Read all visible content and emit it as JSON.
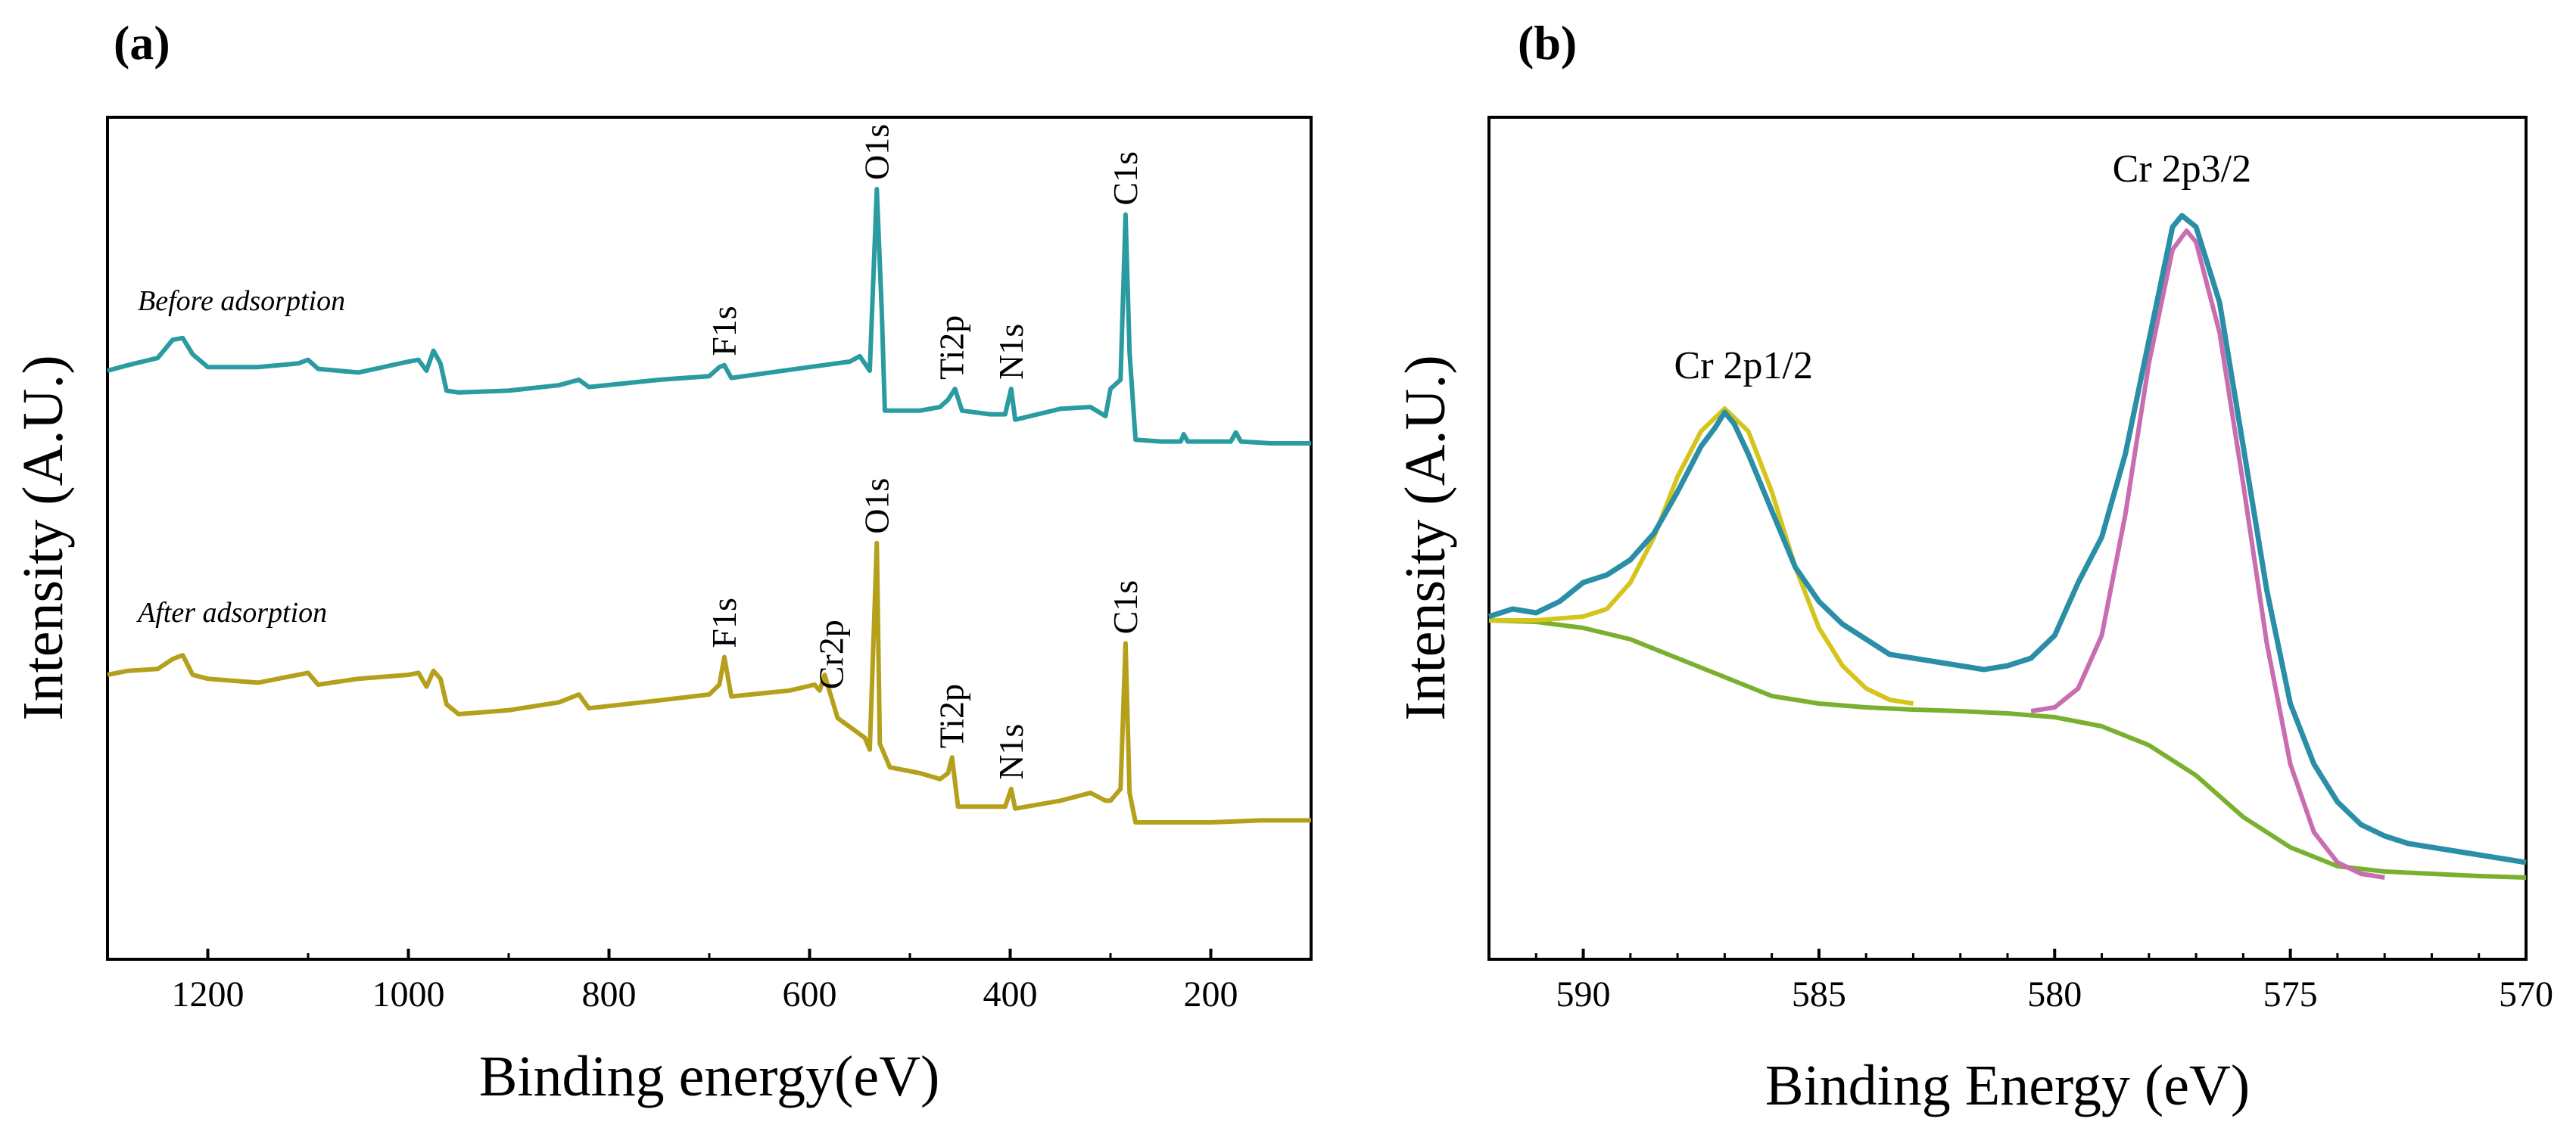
{
  "chart_data": [
    {
      "panel": "(a)",
      "type": "line",
      "xlabel": "Binding energy(eV)",
      "ylabel": "Intensity (A.U.)",
      "xlim": [
        1300,
        100
      ],
      "x_reversed": true,
      "xticks": [
        1200,
        1000,
        800,
        600,
        400,
        200
      ],
      "yticks_shown": false,
      "series": [
        {
          "name": "Before adsorption",
          "color": "#2a9ba0",
          "points": [
            [
              1300,
              0.0
            ],
            [
              1280,
              0.03
            ],
            [
              1250,
              0.07
            ],
            [
              1235,
              0.17
            ],
            [
              1225,
              0.18
            ],
            [
              1215,
              0.09
            ],
            [
              1200,
              0.02
            ],
            [
              1150,
              0.02
            ],
            [
              1110,
              0.04
            ],
            [
              1100,
              0.06
            ],
            [
              1090,
              0.01
            ],
            [
              1050,
              -0.01
            ],
            [
              1000,
              0.05
            ],
            [
              990,
              0.06
            ],
            [
              982,
              0.0
            ],
            [
              975,
              0.11
            ],
            [
              968,
              0.04
            ],
            [
              962,
              -0.11
            ],
            [
              950,
              -0.12
            ],
            [
              900,
              -0.11
            ],
            [
              850,
              -0.08
            ],
            [
              830,
              -0.05
            ],
            [
              820,
              -0.09
            ],
            [
              750,
              -0.05
            ],
            [
              700,
              -0.03
            ],
            [
              690,
              0.02
            ],
            [
              685,
              0.03
            ],
            [
              678,
              -0.04
            ],
            [
              600,
              0.02
            ],
            [
              560,
              0.05
            ],
            [
              550,
              0.08
            ],
            [
              540,
              0.0
            ],
            [
              533,
              1.0
            ],
            [
              528,
              0.32
            ],
            [
              525,
              -0.22
            ],
            [
              490,
              -0.22
            ],
            [
              470,
              -0.2
            ],
            [
              462,
              -0.16
            ],
            [
              455,
              -0.1
            ],
            [
              448,
              -0.22
            ],
            [
              420,
              -0.24
            ],
            [
              405,
              -0.24
            ],
            [
              399,
              -0.1
            ],
            [
              395,
              -0.27
            ],
            [
              350,
              -0.21
            ],
            [
              320,
              -0.2
            ],
            [
              305,
              -0.25
            ],
            [
              300,
              -0.1
            ],
            [
              290,
              -0.05
            ],
            [
              285,
              0.86
            ],
            [
              281,
              0.1
            ],
            [
              275,
              -0.38
            ],
            [
              250,
              -0.39
            ],
            [
              230,
              -0.39
            ],
            [
              227,
              -0.35
            ],
            [
              223,
              -0.39
            ],
            [
              180,
              -0.39
            ],
            [
              175,
              -0.34
            ],
            [
              170,
              -0.39
            ],
            [
              140,
              -0.4
            ],
            [
              100,
              -0.4
            ]
          ],
          "peak_labels": [
            {
              "text": "O1s",
              "x": 533
            },
            {
              "text": "C1s",
              "x": 285
            },
            {
              "text": "F1s",
              "x": 685
            },
            {
              "text": "Ti2p",
              "x": 458
            },
            {
              "text": "N1s",
              "x": 399
            }
          ]
        },
        {
          "name": "After adsorption",
          "color": "#b5a01c",
          "points": [
            [
              1300,
              0.0
            ],
            [
              1280,
              0.02
            ],
            [
              1250,
              0.03
            ],
            [
              1235,
              0.08
            ],
            [
              1225,
              0.1
            ],
            [
              1215,
              0.0
            ],
            [
              1200,
              -0.02
            ],
            [
              1150,
              -0.04
            ],
            [
              1100,
              0.01
            ],
            [
              1090,
              -0.05
            ],
            [
              1050,
              -0.02
            ],
            [
              1000,
              0.0
            ],
            [
              990,
              0.01
            ],
            [
              982,
              -0.06
            ],
            [
              975,
              0.02
            ],
            [
              968,
              -0.02
            ],
            [
              962,
              -0.15
            ],
            [
              950,
              -0.2
            ],
            [
              900,
              -0.18
            ],
            [
              850,
              -0.14
            ],
            [
              830,
              -0.1
            ],
            [
              820,
              -0.17
            ],
            [
              750,
              -0.13
            ],
            [
              700,
              -0.1
            ],
            [
              690,
              -0.05
            ],
            [
              685,
              0.09
            ],
            [
              678,
              -0.11
            ],
            [
              620,
              -0.08
            ],
            [
              595,
              -0.05
            ],
            [
              590,
              -0.08
            ],
            [
              585,
              0.0
            ],
            [
              578,
              -0.12
            ],
            [
              572,
              -0.22
            ],
            [
              545,
              -0.32
            ],
            [
              540,
              -0.38
            ],
            [
              533,
              0.67
            ],
            [
              530,
              -0.35
            ],
            [
              520,
              -0.47
            ],
            [
              490,
              -0.5
            ],
            [
              470,
              -0.53
            ],
            [
              462,
              -0.5
            ],
            [
              458,
              -0.42
            ],
            [
              452,
              -0.67
            ],
            [
              420,
              -0.67
            ],
            [
              405,
              -0.67
            ],
            [
              399,
              -0.58
            ],
            [
              395,
              -0.68
            ],
            [
              350,
              -0.64
            ],
            [
              320,
              -0.6
            ],
            [
              305,
              -0.64
            ],
            [
              300,
              -0.64
            ],
            [
              290,
              -0.58
            ],
            [
              285,
              0.16
            ],
            [
              281,
              -0.6
            ],
            [
              275,
              -0.75
            ],
            [
              250,
              -0.75
            ],
            [
              200,
              -0.75
            ],
            [
              150,
              -0.74
            ],
            [
              100,
              -0.74
            ]
          ],
          "peak_labels": [
            {
              "text": "O1s",
              "x": 533
            },
            {
              "text": "C1s",
              "x": 285
            },
            {
              "text": "F1s",
              "x": 685
            },
            {
              "text": "Cr2p",
              "x": 578
            },
            {
              "text": "Ti2p",
              "x": 458
            },
            {
              "text": "N1s",
              "x": 399
            }
          ]
        }
      ]
    },
    {
      "panel": "(b)",
      "type": "line",
      "xlabel": "Binding Energy (eV)",
      "ylabel": "Intensity (A.U.)",
      "xlim": [
        592,
        570
      ],
      "x_reversed": true,
      "xticks": [
        590,
        585,
        580,
        575,
        570
      ],
      "yticks_shown": false,
      "series": [
        {
          "name": "",
          "color": "#2a8fa6",
          "role": "raw spectrum",
          "points": [
            [
              592,
              0.365
            ],
            [
              591.5,
              0.375
            ],
            [
              591,
              0.37
            ],
            [
              590.5,
              0.385
            ],
            [
              590,
              0.41
            ],
            [
              589.5,
              0.42
            ],
            [
              589,
              0.44
            ],
            [
              588.5,
              0.475
            ],
            [
              588,
              0.53
            ],
            [
              587.5,
              0.59
            ],
            [
              587.2,
              0.615
            ],
            [
              587,
              0.635
            ],
            [
              586.8,
              0.62
            ],
            [
              586.5,
              0.58
            ],
            [
              586,
              0.505
            ],
            [
              585.5,
              0.43
            ],
            [
              585,
              0.385
            ],
            [
              584.5,
              0.355
            ],
            [
              584,
              0.335
            ],
            [
              583.5,
              0.315
            ],
            [
              583,
              0.31
            ],
            [
              582.5,
              0.305
            ],
            [
              582,
              0.3
            ],
            [
              581.5,
              0.295
            ],
            [
              581,
              0.3
            ],
            [
              580.5,
              0.31
            ],
            [
              580,
              0.34
            ],
            [
              579.5,
              0.41
            ],
            [
              579,
              0.47
            ],
            [
              578.5,
              0.58
            ],
            [
              578,
              0.73
            ],
            [
              577.5,
              0.88
            ],
            [
              577.3,
              0.895
            ],
            [
              577,
              0.88
            ],
            [
              576.5,
              0.78
            ],
            [
              576,
              0.59
            ],
            [
              575.5,
              0.4
            ],
            [
              575,
              0.25
            ],
            [
              574.5,
              0.17
            ],
            [
              574,
              0.12
            ],
            [
              573.5,
              0.09
            ],
            [
              573,
              0.075
            ],
            [
              572.5,
              0.065
            ],
            [
              572,
              0.06
            ],
            [
              571.5,
              0.055
            ],
            [
              571,
              0.05
            ],
            [
              570.5,
              0.045
            ],
            [
              570,
              0.04
            ]
          ]
        },
        {
          "name": "",
          "color": "#d4c41c",
          "role": "Cr 2p1/2 fit",
          "points": [
            [
              592,
              0.36
            ],
            [
              591,
              0.36
            ],
            [
              590,
              0.365
            ],
            [
              589.5,
              0.375
            ],
            [
              589,
              0.41
            ],
            [
              588.5,
              0.47
            ],
            [
              588,
              0.55
            ],
            [
              587.5,
              0.61
            ],
            [
              587,
              0.64
            ],
            [
              586.5,
              0.61
            ],
            [
              586,
              0.53
            ],
            [
              585.5,
              0.43
            ],
            [
              585,
              0.35
            ],
            [
              584.5,
              0.3
            ],
            [
              584,
              0.27
            ],
            [
              583.5,
              0.255
            ],
            [
              583,
              0.25
            ]
          ]
        },
        {
          "name": "",
          "color": "#c86db0",
          "role": "Cr 2p3/2 fit",
          "points": [
            [
              580.5,
              0.24
            ],
            [
              580,
              0.245
            ],
            [
              579.5,
              0.27
            ],
            [
              579,
              0.34
            ],
            [
              578.5,
              0.5
            ],
            [
              578,
              0.7
            ],
            [
              577.5,
              0.85
            ],
            [
              577.2,
              0.875
            ],
            [
              577,
              0.86
            ],
            [
              576.5,
              0.74
            ],
            [
              576,
              0.54
            ],
            [
              575.5,
              0.33
            ],
            [
              575,
              0.17
            ],
            [
              574.5,
              0.08
            ],
            [
              574,
              0.04
            ],
            [
              573.5,
              0.025
            ],
            [
              573,
              0.02
            ]
          ]
        },
        {
          "name": "",
          "color": "#7ab030",
          "role": "background",
          "points": [
            [
              592,
              0.36
            ],
            [
              591,
              0.358
            ],
            [
              590,
              0.35
            ],
            [
              589,
              0.335
            ],
            [
              588,
              0.31
            ],
            [
              587,
              0.285
            ],
            [
              586,
              0.26
            ],
            [
              585,
              0.25
            ],
            [
              584,
              0.245
            ],
            [
              583,
              0.242
            ],
            [
              582,
              0.24
            ],
            [
              581,
              0.237
            ],
            [
              580,
              0.232
            ],
            [
              579,
              0.22
            ],
            [
              578,
              0.195
            ],
            [
              577,
              0.155
            ],
            [
              576,
              0.1
            ],
            [
              575,
              0.06
            ],
            [
              574,
              0.035
            ],
            [
              573,
              0.028
            ],
            [
              572,
              0.025
            ],
            [
              571,
              0.022
            ],
            [
              570,
              0.02
            ]
          ]
        }
      ],
      "annotations": [
        {
          "text": "Cr 2p1/2",
          "x": 586.6
        },
        {
          "text": "Cr 2p3/2",
          "x": 577.3
        }
      ]
    }
  ]
}
